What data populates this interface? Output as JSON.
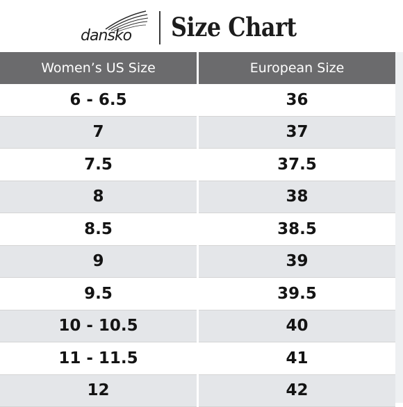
{
  "header": {
    "brand_logo_text": "dansko",
    "title": "Size Chart"
  },
  "table": {
    "columns": [
      "Women’s US Size",
      "European Size"
    ],
    "rows": [
      {
        "us": "6 - 6.5",
        "eu": "36"
      },
      {
        "us": "7",
        "eu": "37"
      },
      {
        "us": "7.5",
        "eu": "37.5"
      },
      {
        "us": "8",
        "eu": "38"
      },
      {
        "us": "8.5",
        "eu": "38.5"
      },
      {
        "us": "9",
        "eu": "39"
      },
      {
        "us": "9.5",
        "eu": "39.5"
      },
      {
        "us": "10 - 10.5",
        "eu": "40"
      },
      {
        "us": "11 - 11.5",
        "eu": "41"
      },
      {
        "us": "12",
        "eu": "42"
      }
    ]
  },
  "colors": {
    "header_bg": "#6b6b6d",
    "stripe_bg": "#e4e6e9",
    "text": "#141414"
  }
}
